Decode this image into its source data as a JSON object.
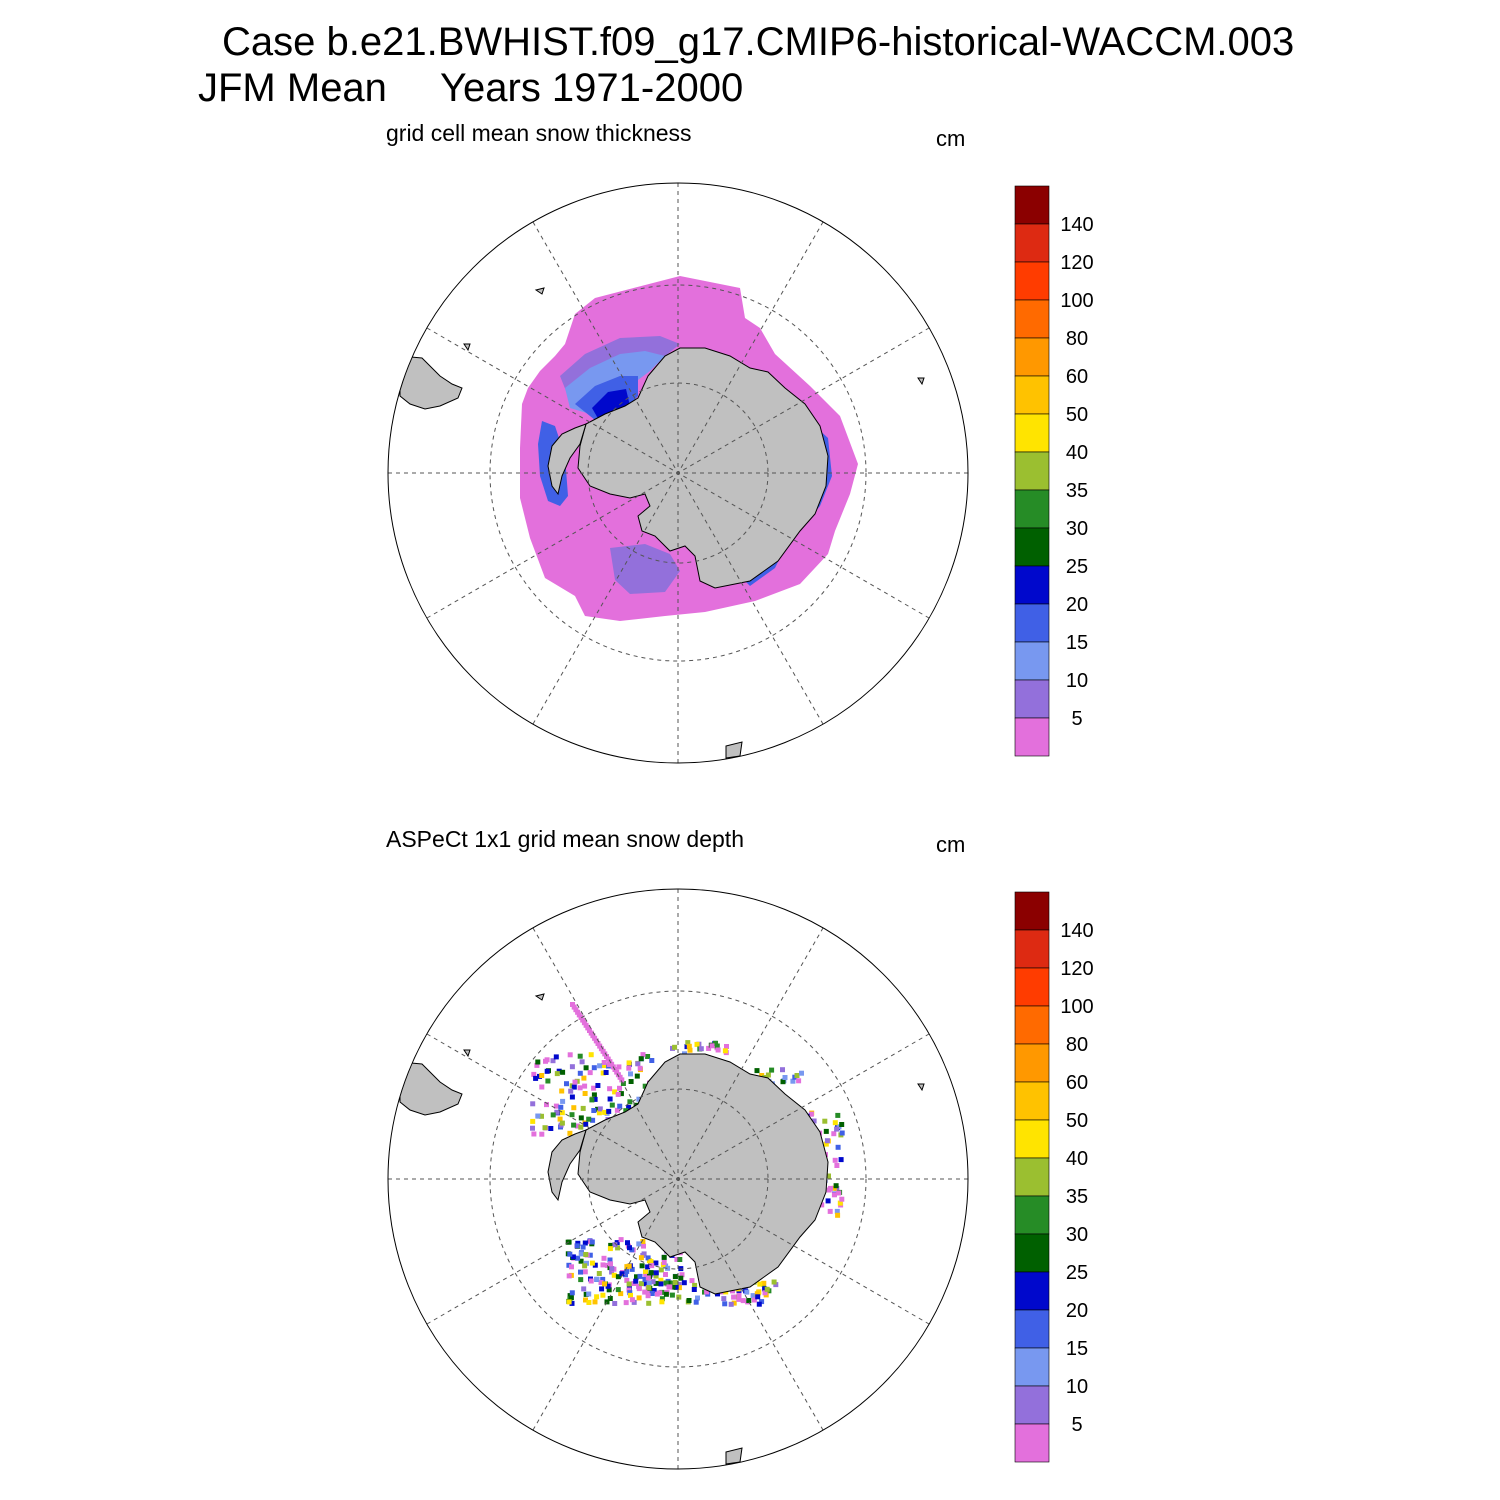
{
  "header": {
    "line1": "Case b.e21.BWHIST.f09_g17.CMIP6-historical-WACCM.003",
    "season": "JFM Mean",
    "years": "Years 1971-2000"
  },
  "panels": [
    {
      "title": "grid cell mean snow thickness",
      "unit": "cm"
    },
    {
      "title": "ASPeCt 1x1 grid mean snow depth",
      "unit": "cm"
    }
  ],
  "colorbar": {
    "labels": [
      "140",
      "120",
      "100",
      "80",
      "60",
      "50",
      "40",
      "35",
      "30",
      "25",
      "20",
      "15",
      "10",
      "5"
    ],
    "colors": [
      "#8b0000",
      "#dd2a12",
      "#ff3c00",
      "#ff6a00",
      "#ff9800",
      "#ffc200",
      "#ffe400",
      "#9bbf30",
      "#268c26",
      "#006000",
      "#0008cc",
      "#4060e6",
      "#7898f0",
      "#9370db",
      "#e370dc"
    ]
  },
  "map_colors": {
    "land": "#c0c0c0",
    "outline": "#000000",
    "grid": "#555555"
  }
}
